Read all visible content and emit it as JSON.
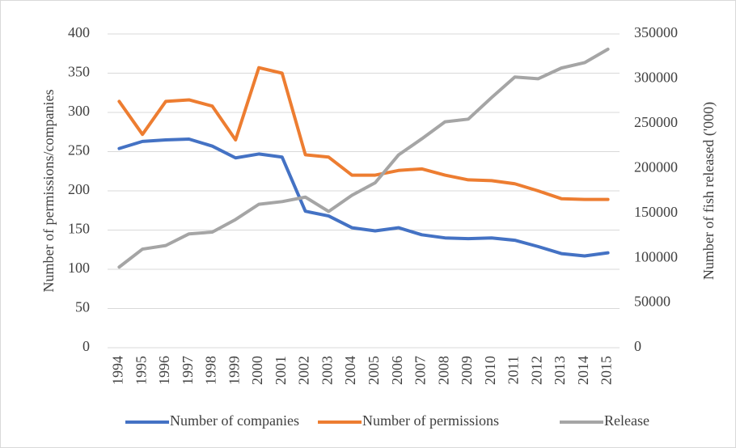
{
  "chart_data": {
    "type": "line",
    "categories": [
      "1994",
      "1995",
      "1996",
      "1997",
      "1998",
      "1999",
      "2000",
      "2001",
      "2002",
      "2003",
      "2004",
      "2005",
      "2006",
      "2007",
      "2008",
      "2009",
      "2010",
      "2011",
      "2012",
      "2013",
      "2014",
      "2015"
    ],
    "ylabel": "Number of permissions/companies",
    "y2label": "Number of fish released ('000)",
    "ylim": [
      0,
      400
    ],
    "yticks": [
      0,
      50,
      100,
      150,
      200,
      250,
      300,
      350,
      400
    ],
    "y2lim": [
      0,
      350000
    ],
    "y2ticks": [
      0,
      50000,
      100000,
      150000,
      200000,
      250000,
      300000,
      350000
    ],
    "grid": true,
    "legend": "bottom",
    "series": [
      {
        "name": "Number of companies",
        "color": "#4472c4",
        "values": [
          254,
          263,
          265,
          266,
          257,
          242,
          247,
          243,
          174,
          168,
          153,
          149,
          153,
          144,
          140,
          139,
          140,
          137,
          129,
          120,
          117,
          121
        ]
      },
      {
        "name": "Number of permissions",
        "color": "#ed7d31",
        "values": [
          314,
          272,
          314,
          316,
          308,
          265,
          357,
          350,
          246,
          243,
          220,
          220,
          226,
          228,
          220,
          214,
          213,
          209,
          200,
          190,
          189,
          189
        ]
      },
      {
        "name": "Release",
        "color": "#a5a5a5",
        "axis": "y2",
        "values": [
          90000,
          110000,
          114000,
          127000,
          129000,
          143000,
          160000,
          163000,
          168000,
          152000,
          170000,
          184000,
          215000,
          233000,
          252000,
          255000,
          279000,
          302000,
          300000,
          312000,
          318000,
          333000
        ]
      }
    ]
  }
}
